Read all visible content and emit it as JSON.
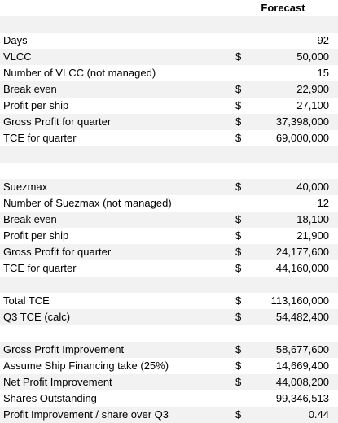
{
  "header": {
    "forecast_label": "Forecast"
  },
  "rows": [
    {
      "label": "",
      "currency": "",
      "value": ""
    },
    {
      "label": "Days",
      "currency": "",
      "value": "92"
    },
    {
      "label": "VLCC",
      "currency": "$",
      "value": "50,000"
    },
    {
      "label": "Number of VLCC (not managed)",
      "currency": "",
      "value": "15"
    },
    {
      "label": "Break even",
      "currency": "$",
      "value": "22,900"
    },
    {
      "label": "Profit per ship",
      "currency": "$",
      "value": "27,100"
    },
    {
      "label": "Gross Profit for quarter",
      "currency": "$",
      "value": "37,398,000"
    },
    {
      "label": "TCE for quarter",
      "currency": "$",
      "value": "69,000,000"
    },
    {
      "label": "",
      "currency": "",
      "value": ""
    },
    {
      "label": "",
      "currency": "",
      "value": ""
    },
    {
      "label": "Suezmax",
      "currency": "$",
      "value": "40,000"
    },
    {
      "label": "Number of Suezmax (not managed)",
      "currency": "",
      "value": "12"
    },
    {
      "label": "Break even",
      "currency": "$",
      "value": "18,100"
    },
    {
      "label": "Profit per ship",
      "currency": "$",
      "value": "21,900"
    },
    {
      "label": "Gross Profit for quarter",
      "currency": "$",
      "value": "24,177,600"
    },
    {
      "label": "TCE for quarter",
      "currency": "$",
      "value": "44,160,000"
    },
    {
      "label": "",
      "currency": "",
      "value": ""
    },
    {
      "label": "Total TCE",
      "currency": "$",
      "value": "113,160,000"
    },
    {
      "label": "Q3 TCE (calc)",
      "currency": "$",
      "value": "54,482,400"
    },
    {
      "label": "",
      "currency": "",
      "value": ""
    },
    {
      "label": "Gross Profit Improvement",
      "currency": "$",
      "value": "58,677,600"
    },
    {
      "label": "Assume Ship Financing take (25%)",
      "currency": "$",
      "value": "14,669,400"
    },
    {
      "label": "Net Profit Improvement",
      "currency": "$",
      "value": "44,008,200"
    },
    {
      "label": "Shares Outstanding",
      "currency": "",
      "value": "99,346,513"
    },
    {
      "label": "Profit Improvement / share over Q3",
      "currency": "$",
      "value": "0.44"
    }
  ]
}
